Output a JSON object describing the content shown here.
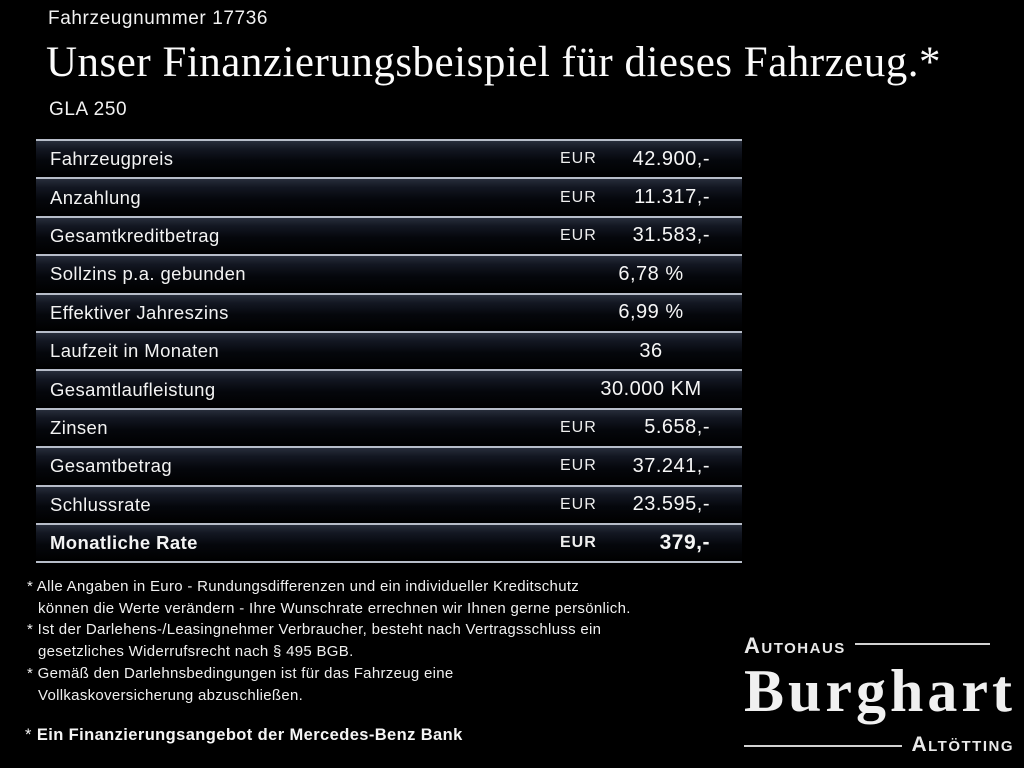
{
  "header": {
    "vehicle_number": "Fahrzeugnummer 17736",
    "title": "Unser Finanzierungsbeispiel für dieses Fahrzeug.*",
    "model": "GLA 250"
  },
  "table": {
    "rows": [
      {
        "label": "Fahrzeugpreis",
        "currency": "EUR",
        "value": "42.900,-"
      },
      {
        "label": "Anzahlung",
        "currency": "EUR",
        "value": "11.317,-"
      },
      {
        "label": "Gesamtkreditbetrag",
        "currency": "EUR",
        "value": "31.583,-"
      },
      {
        "label": "Sollzins p.a. gebunden",
        "currency": "",
        "value": "6,78 %"
      },
      {
        "label": "Effektiver Jahreszins",
        "currency": "",
        "value": "6,99 %"
      },
      {
        "label": "Laufzeit in Monaten",
        "currency": "",
        "value": "36"
      },
      {
        "label": "Gesamtlaufleistung",
        "currency": "",
        "value": "30.000 KM"
      },
      {
        "label": "Zinsen",
        "currency": "EUR",
        "value": "5.658,-"
      },
      {
        "label": "Gesamtbetrag",
        "currency": "EUR",
        "value": "37.241,-"
      },
      {
        "label": "Schlussrate",
        "currency": "EUR",
        "value": "23.595,-"
      },
      {
        "label": "Monatliche Rate",
        "currency": "EUR",
        "value": "379,-"
      }
    ]
  },
  "footnotes": {
    "marker": "* ",
    "items": [
      {
        "line1": "Alle Angaben in Euro - Rundungsdifferenzen und ein individueller Kreditschutz",
        "line2": "können die Werte verändern - Ihre Wunschrate errechnen wir Ihnen gerne persönlich."
      },
      {
        "line1": "Ist der Darlehens-/Leasingnehmer Verbraucher, besteht nach Vertragsschluss ein",
        "line2": "gesetzliches Widerrufsrecht nach § 495 BGB."
      },
      {
        "line1": "Gemäß den Darlehnsbedingungen ist für das Fahrzeug eine",
        "line2": "Vollkaskoversicherung abzuschließen."
      }
    ],
    "offer": "Ein Finanzierungsangebot der Mercedes-Benz Bank"
  },
  "logo": {
    "prefix": "Autohaus",
    "name": "Burghart",
    "city": "Altötting"
  },
  "colors": {
    "background": "#000000",
    "text": "#f4f4f4",
    "separator": "#b7bdc9"
  }
}
